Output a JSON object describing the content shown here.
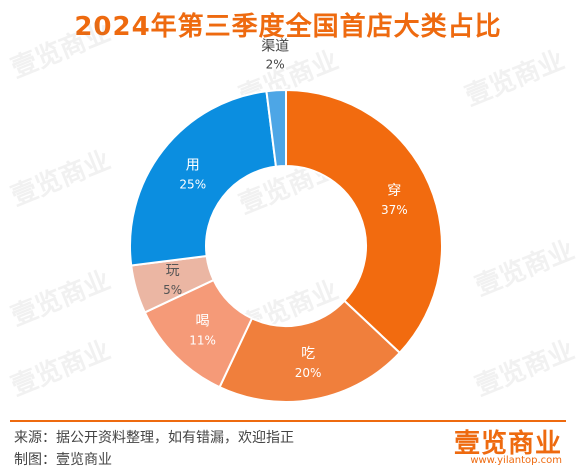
{
  "title": "2024年第三季度全国首店大类占比",
  "footer": {
    "source": "来源：据公开资料整理，如有错漏，欢迎指正",
    "author": "制图：壹览商业",
    "brand": "壹览商业",
    "url": "www.yilantop.com"
  },
  "watermark_text": "壹览商业",
  "chart_data": {
    "type": "pie",
    "variant": "donut",
    "categories": [
      "穿",
      "吃",
      "喝",
      "玩",
      "用",
      "渠道"
    ],
    "values": [
      37,
      20,
      11,
      5,
      25,
      2
    ],
    "labels": [
      "37%",
      "20%",
      "11%",
      "5%",
      "25%",
      "2%"
    ],
    "colors": [
      "#f26b0f",
      "#f07f3c",
      "#f59a78",
      "#ebb6a3",
      "#0b8ee0",
      "#4da6e6"
    ],
    "start_angle_deg": 0,
    "direction": "clockwise"
  }
}
